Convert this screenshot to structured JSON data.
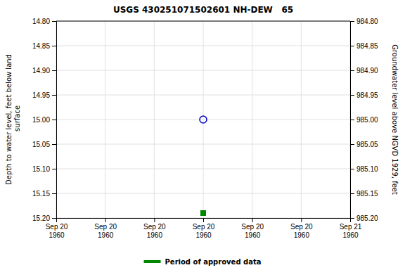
{
  "chart_data": {
    "type": "scatter",
    "title": "USGS 430251071502601 NH-DEW   65",
    "y_label": "Depth to water level, feet below land\n surface",
    "y2_label": "Groundwater level above NGVD 1929, feet",
    "categories": [
      "Sep 20\n1960",
      "Sep 20\n1960",
      "Sep 20\n1960",
      "Sep 20\n1960",
      "Sep 20\n1960",
      "Sep 20\n1960",
      "Sep 21\n1960"
    ],
    "series": [
      {
        "color": "#0000cc",
        "marker": "circle-open",
        "values": [
          null,
          null,
          null,
          15.0,
          null,
          null,
          null
        ]
      },
      {
        "name": "Period of approved data",
        "color": "#008800",
        "marker": "square",
        "values": [
          null,
          null,
          null,
          15.19,
          null,
          null,
          null
        ]
      }
    ],
    "ylim": [
      15.2,
      14.8
    ],
    "yticks": [
      {
        "value": 14.8,
        "label": "14.80"
      },
      14.85,
      {
        "value": 14.9,
        "label": "14.90"
      },
      14.95,
      {
        "value": 15.0,
        "label": "15.00"
      },
      15.05,
      {
        "value": 15.1,
        "label": "15.10"
      },
      15.15,
      {
        "value": 15.2,
        "label": "15.20"
      }
    ],
    "y2lim": [
      985.2,
      984.8
    ],
    "y2ticks": [
      {
        "value": 984.8,
        "label": "984.80"
      },
      984.85,
      {
        "value": 984.9,
        "label": "984.90"
      },
      984.95,
      {
        "value": 985.0,
        "label": "985.00"
      },
      985.05,
      {
        "value": 985.1,
        "label": "985.10"
      },
      985.15,
      {
        "value": 985.2,
        "label": "985.20"
      }
    ],
    "grid": true,
    "legend": "bottom"
  }
}
